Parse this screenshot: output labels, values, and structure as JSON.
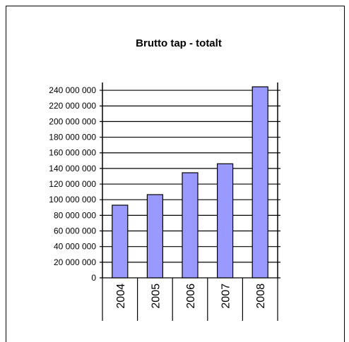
{
  "chart_data": {
    "type": "bar",
    "title": "Brutto tap - totalt",
    "categories": [
      "2004",
      "2005",
      "2006",
      "2007",
      "2008"
    ],
    "values": [
      93000000,
      106500000,
      134500000,
      146000000,
      244500000
    ],
    "color": "#9999ff",
    "ylim": [
      0,
      250000000
    ],
    "yticks": [
      0,
      {
        "value": 20000000,
        "label": "20 000 000"
      },
      {
        "value": 40000000,
        "label": "40 000 000"
      },
      {
        "value": 60000000,
        "label": "60 000 000"
      },
      {
        "value": 80000000,
        "label": "80 000 000"
      },
      {
        "value": 100000000,
        "label": "100 000 000"
      },
      {
        "value": 120000000,
        "label": "120 000 000"
      },
      {
        "value": 140000000,
        "label": "140 000 000"
      },
      {
        "value": 160000000,
        "label": "160 000 000"
      },
      {
        "value": 180000000,
        "label": "180 000 000"
      },
      {
        "value": 200000000,
        "label": "200 000 000"
      },
      {
        "value": 220000000,
        "label": "220 000 000"
      },
      {
        "value": 240000000,
        "label": "240 000 000"
      }
    ],
    "grid": true
  }
}
